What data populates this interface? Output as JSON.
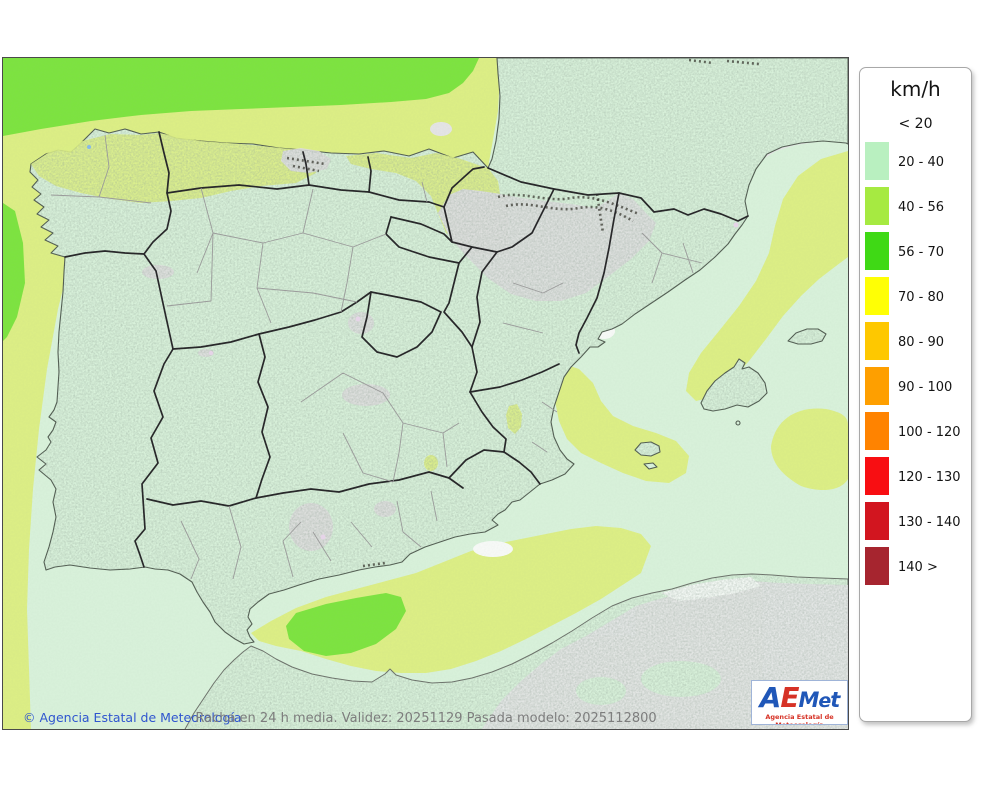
{
  "legend": {
    "title": "km/h",
    "first_label": "< 20",
    "items": [
      {
        "label": "20 - 40",
        "color": "#b9f0c0"
      },
      {
        "label": "40 - 56",
        "color": "#a6ea41"
      },
      {
        "label": "56 - 70",
        "color": "#3fd915"
      },
      {
        "label": "70 - 80",
        "color": "#ffff05"
      },
      {
        "label": "80 - 90",
        "color": "#fec800"
      },
      {
        "label": "90 - 100",
        "color": "#fe9f00"
      },
      {
        "label": "100 - 120",
        "color": "#ff8300"
      },
      {
        "label": "120 - 130",
        "color": "#f80e12"
      },
      {
        "label": "130 - 140",
        "color": "#d2151f"
      },
      {
        "label": "140 >",
        "color": "#a6252f"
      }
    ]
  },
  "footer": {
    "copyright": "© Agencia Estatal de Meteorología",
    "caption": "Racha en 24 h media. Validez: 20251129 Pasada modelo: 2025112800"
  },
  "logo": {
    "letters": [
      {
        "char": "A",
        "color": "#2057b8"
      },
      {
        "char": "E",
        "color": "#d63226"
      },
      {
        "char": "M",
        "color": "#2057b8"
      },
      {
        "char": "e",
        "color": "#2057b8"
      },
      {
        "char": "t",
        "color": "#2057b8"
      }
    ],
    "subtitle": "Agencia Estatal de Meteorología",
    "subtitle_color": "#d63226"
  },
  "map": {
    "colors": {
      "sea": "#d8f1da",
      "yellow": "#dcee85",
      "green": "#7de340",
      "grey": "#e4e4e5",
      "landgrey": "#dedede",
      "palewhite": "#f7f9f7",
      "pink": "#e6d4e8",
      "hatch": "#3c3c34",
      "coast": "#4f5a4f",
      "border": "#28282a",
      "prov": "#9a9a9a"
    }
  }
}
